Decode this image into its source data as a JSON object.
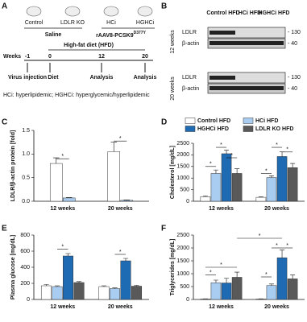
{
  "panels": {
    "letters": [
      "A",
      "B",
      "C",
      "D",
      "E",
      "F"
    ],
    "a": {
      "groups": [
        "Control",
        "LDLR KO",
        "HCi",
        "HGHCi"
      ],
      "treatments": [
        "Saline",
        "rAAV8-PCSK9"
      ],
      "treatment_sup": "D377Y",
      "diet": "High-fat diet (HFD)",
      "weeks_label": "Weeks",
      "weeks": [
        "-1",
        "0",
        "12",
        "20"
      ],
      "events": [
        "Virus injection",
        "Diet",
        "Analysis",
        "Analysis"
      ],
      "footnote": "HCi: hyperlipidemic; HGHCi: hyperglycemic/hyperlipidemic"
    },
    "b": {
      "lanes": [
        "Control HFD",
        "HCi HFD",
        "HGHCi HFD"
      ],
      "timepoints": [
        "12 weeks",
        "20 weeks"
      ],
      "proteins": [
        "LDLR",
        "β-actin"
      ],
      "markers": [
        "- 130",
        "- 40"
      ]
    }
  },
  "chart_data": [
    {
      "type": "bar",
      "ylabel": "LDLR/β-actin protein [fold]",
      "categories": [
        "12 weeks",
        "20 weeks"
      ],
      "series": [
        {
          "color": "#ffffff",
          "values": [
            0.8,
            1.05
          ],
          "errors": [
            0.12,
            0.2
          ]
        },
        {
          "color": "#a9cdf0",
          "values": [
            0.07,
            0.02
          ],
          "errors": [
            0.01,
            0.01
          ]
        }
      ],
      "ylim": [
        0,
        1.5
      ],
      "yticks": [
        {
          "value": 0,
          "label": "0.0"
        },
        {
          "value": 0.5,
          "label": "0.5"
        },
        {
          "value": 1,
          "label": "1.0"
        },
        {
          "value": 1.5,
          "label": "1.5"
        }
      ],
      "annotations": [
        "*",
        "*"
      ]
    },
    {
      "type": "bar",
      "ylabel": "Cholesterol [mg/dL]",
      "categories": [
        "12 weeks",
        "20 weeks"
      ],
      "legend": "top",
      "series": [
        {
          "name": "Control HFD",
          "color": "#ffffff",
          "values": [
            200,
            170
          ],
          "errors": [
            30,
            20
          ]
        },
        {
          "name": "HCi HFD",
          "color": "#a9cdf0",
          "values": [
            1200,
            1020
          ],
          "errors": [
            150,
            80
          ]
        },
        {
          "name": "HGHCi HFD",
          "color": "#1f6bb3",
          "values": [
            2050,
            1930
          ],
          "errors": [
            150,
            200
          ]
        },
        {
          "name": "LDLR KO HFD",
          "color": "#595959",
          "values": [
            1200,
            1450
          ],
          "errors": [
            200,
            180
          ]
        }
      ],
      "ylim": [
        0,
        2500
      ],
      "yticks": [
        0,
        500,
        1000,
        1500,
        2000,
        2500
      ],
      "annotations": [
        "*",
        "*",
        "*",
        "*",
        "*",
        "*"
      ]
    },
    {
      "type": "bar",
      "ylabel": "Plasma glucose [mg/dL]",
      "categories": [
        "12 weeks",
        "20 weeks"
      ],
      "series": [
        {
          "color": "#ffffff",
          "values": [
            170,
            160
          ],
          "errors": [
            15,
            10
          ]
        },
        {
          "color": "#a9cdf0",
          "values": [
            160,
            135
          ],
          "errors": [
            10,
            8
          ]
        },
        {
          "color": "#1f6bb3",
          "values": [
            540,
            480
          ],
          "errors": [
            30,
            30
          ]
        },
        {
          "color": "#595959",
          "values": [
            210,
            165
          ],
          "errors": [
            12,
            10
          ]
        }
      ],
      "ylim": [
        0,
        800
      ],
      "yticks": [
        0,
        200,
        400,
        600,
        800
      ],
      "annotations": [
        "*",
        "*"
      ]
    },
    {
      "type": "bar",
      "ylabel": "Triglycerides [mg/dL]",
      "categories": [
        "12 weeks",
        "20 weeks"
      ],
      "series": [
        {
          "color": "#ffffff",
          "values": [
            20,
            20
          ],
          "errors": [
            5,
            5
          ]
        },
        {
          "color": "#a9cdf0",
          "values": [
            650,
            540
          ],
          "errors": [
            100,
            60
          ]
        },
        {
          "color": "#1f6bb3",
          "values": [
            640,
            1620
          ],
          "errors": [
            180,
            300
          ]
        },
        {
          "color": "#595959",
          "values": [
            860,
            800
          ],
          "errors": [
            200,
            150
          ]
        }
      ],
      "ylim": [
        0,
        2500
      ],
      "yticks": [
        0,
        500,
        1000,
        1500,
        2000,
        2500
      ],
      "annotations": [
        "*",
        "*",
        "*",
        "*",
        "*",
        "*"
      ]
    }
  ]
}
